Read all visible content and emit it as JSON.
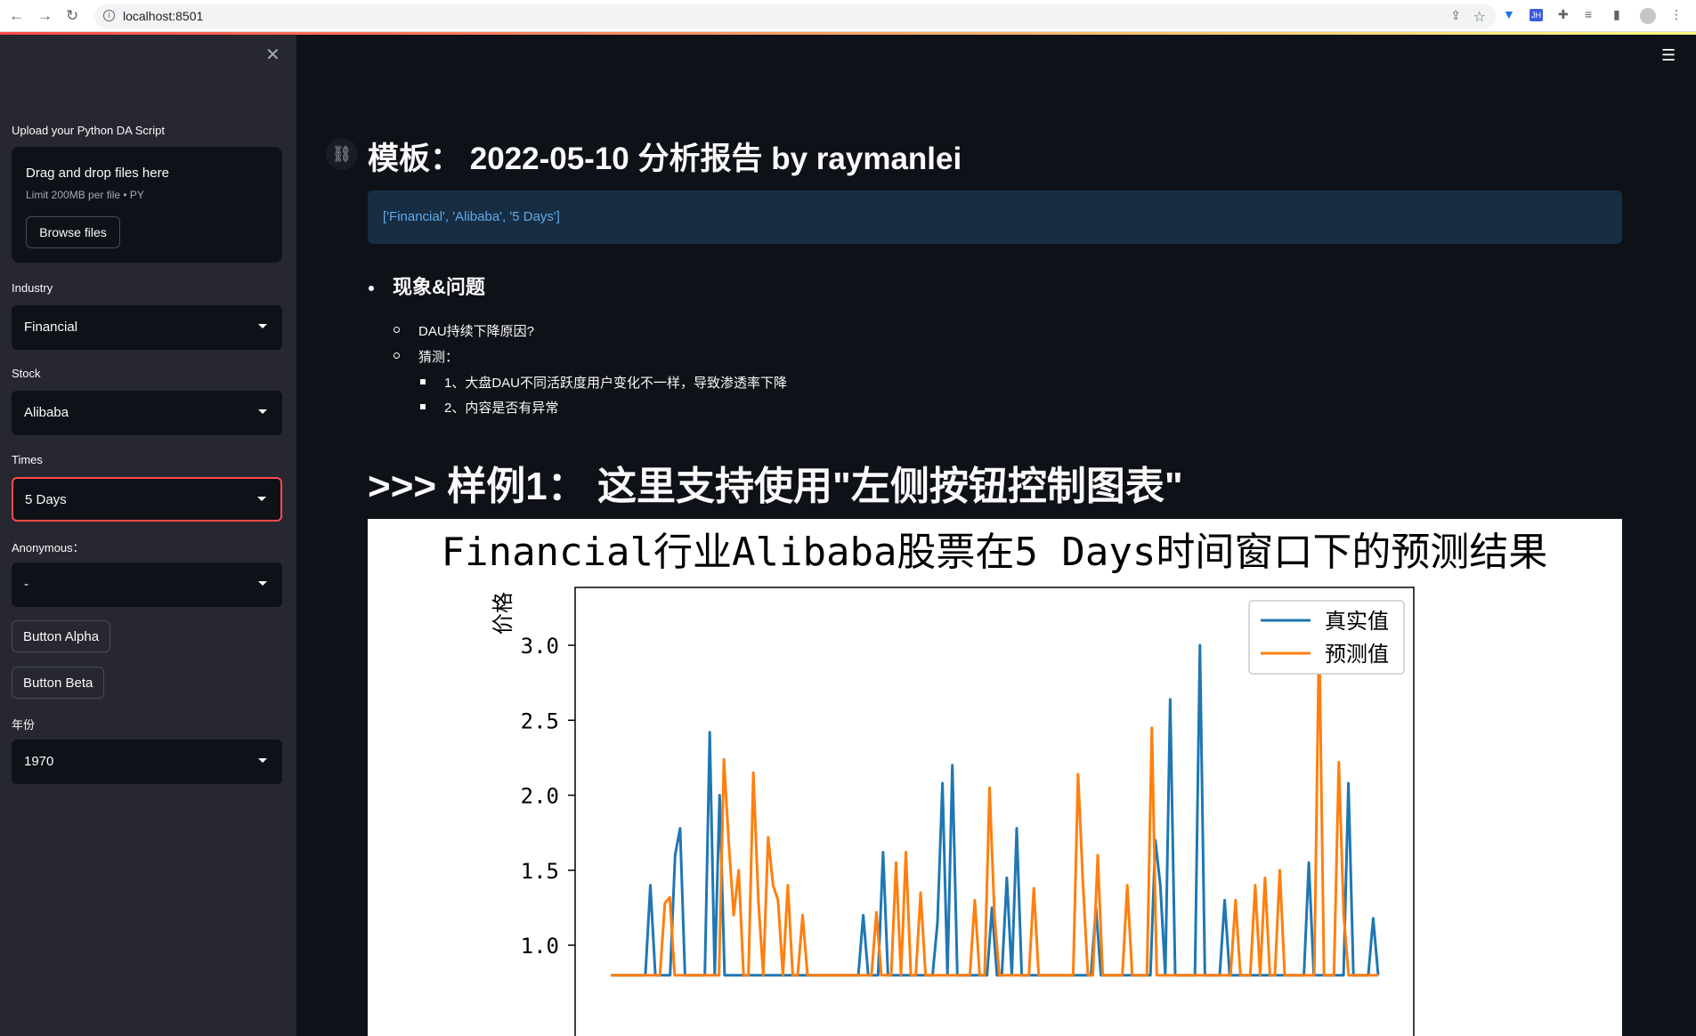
{
  "browser": {
    "url": "localhost:8501"
  },
  "sidebar": {
    "uploader": {
      "label": "Upload your Python DA Script",
      "drag_text": "Drag and drop files here",
      "limit_text": "Limit 200MB per file • PY",
      "browse_label": "Browse files"
    },
    "industry": {
      "label": "Industry",
      "value": "Financial"
    },
    "stock": {
      "label": "Stock",
      "value": "Alibaba"
    },
    "times": {
      "label": "Times",
      "value": "5 Days"
    },
    "anonymous": {
      "label": "Anonymous：",
      "value": "-"
    },
    "button_alpha": "Button Alpha",
    "button_beta": "Button Beta",
    "year": {
      "label": "年份",
      "value": "1970"
    }
  },
  "main": {
    "title": "模板： 2022-05-10 分析报告 by raymanlei",
    "info": "['Financial', 'Alibaba', '5 Days']",
    "section": "现象&问题",
    "items": [
      "DAU持续下降原因?",
      "猜测："
    ],
    "subitems": [
      "1、大盘DAU不同活跃度用户变化不一样，导致渗透率下降",
      "2、内容是否有异常"
    ],
    "sample_heading": ">>> 样例1： 这里支持使用\"左侧按钮控制图表\""
  },
  "chart_data": {
    "type": "line",
    "title": "Financial行业Alibaba股票在5 Days时间窗口下的预测结果",
    "ylabel": "价格",
    "ylim": [
      0.95,
      3.4
    ],
    "yticks": [
      "3.0",
      "2.5",
      "2.0",
      "1.5",
      "1.0"
    ],
    "legend": "top-right",
    "series": [
      {
        "name": "真实值",
        "color": "#1f77b4",
        "values": [
          0.8,
          0.8,
          0.8,
          0.8,
          0.8,
          0.8,
          0.8,
          0.8,
          1.4,
          0.8,
          0.8,
          0.8,
          0.8,
          1.6,
          1.78,
          0.8,
          0.8,
          0.8,
          0.8,
          0.8,
          2.42,
          0.8,
          2.0,
          0.8,
          0.8,
          0.8,
          0.8,
          0.8,
          0.8,
          0.8,
          0.8,
          0.8,
          0.8,
          0.8,
          0.8,
          0.8,
          0.8,
          0.8,
          0.8,
          0.8,
          0.8,
          0.8,
          0.8,
          0.8,
          0.8,
          0.8,
          0.8,
          0.8,
          0.8,
          0.8,
          0.8,
          1.2,
          0.8,
          0.8,
          0.8,
          1.62,
          0.8,
          0.8,
          0.8,
          0.8,
          0.8,
          0.8,
          0.8,
          0.8,
          0.8,
          0.8,
          1.15,
          2.08,
          0.8,
          2.2,
          0.8,
          0.8,
          0.8,
          0.8,
          0.8,
          0.8,
          0.8,
          1.25,
          0.8,
          0.8,
          1.45,
          0.8,
          1.78,
          0.8,
          0.8,
          0.8,
          0.8,
          0.8,
          0.8,
          0.8,
          0.8,
          0.8,
          0.8,
          0.8,
          0.8,
          0.8,
          0.8,
          0.8,
          1.25,
          0.8,
          0.8,
          0.8,
          0.8,
          0.8,
          0.8,
          0.8,
          0.8,
          0.8,
          0.8,
          0.8,
          1.7,
          1.4,
          0.8,
          2.64,
          0.8,
          0.8,
          0.8,
          0.8,
          0.8,
          3.0,
          0.8,
          0.8,
          0.8,
          0.8,
          1.3,
          0.8,
          0.8,
          0.8,
          0.8,
          0.8,
          0.8,
          0.8,
          0.8,
          0.8,
          0.8,
          0.8,
          0.8,
          0.8,
          0.8,
          0.8,
          0.8,
          1.55,
          0.8,
          0.8,
          0.8,
          0.8,
          0.8,
          0.8,
          0.8,
          2.08,
          0.8,
          0.8,
          0.8,
          0.8,
          1.18,
          0.8
        ]
      },
      {
        "name": "预测值",
        "color": "#ff7f0e",
        "values": [
          0.8,
          0.8,
          0.8,
          0.8,
          0.8,
          0.8,
          0.8,
          0.8,
          0.8,
          0.8,
          0.8,
          1.28,
          1.32,
          0.8,
          0.8,
          0.8,
          0.8,
          0.8,
          0.8,
          0.8,
          0.8,
          0.8,
          0.8,
          2.24,
          1.68,
          1.2,
          1.5,
          0.8,
          0.8,
          2.15,
          1.3,
          0.8,
          1.72,
          1.4,
          1.3,
          0.8,
          1.4,
          0.8,
          0.8,
          1.2,
          0.8,
          0.8,
          0.8,
          0.8,
          0.8,
          0.8,
          0.8,
          0.8,
          0.8,
          0.8,
          0.8,
          0.8,
          0.8,
          0.8,
          1.22,
          0.8,
          0.8,
          0.8,
          1.55,
          0.8,
          1.62,
          0.8,
          0.8,
          1.35,
          0.8,
          0.8,
          0.8,
          0.8,
          0.8,
          0.8,
          0.8,
          0.8,
          0.8,
          0.8,
          1.3,
          0.8,
          0.8,
          2.05,
          1.2,
          0.8,
          0.8,
          0.8,
          0.8,
          0.8,
          0.8,
          0.8,
          1.38,
          0.8,
          0.8,
          0.8,
          0.8,
          0.8,
          0.8,
          0.8,
          0.8,
          2.14,
          1.4,
          0.8,
          0.8,
          1.6,
          0.8,
          0.8,
          0.8,
          0.8,
          0.8,
          1.4,
          0.8,
          0.8,
          0.8,
          0.8,
          2.45,
          0.8,
          0.8,
          0.8,
          0.8,
          0.8,
          0.8,
          0.8,
          0.8,
          0.8,
          0.8,
          0.8,
          0.8,
          0.8,
          0.8,
          0.8,
          0.8,
          1.3,
          0.8,
          0.8,
          0.8,
          1.4,
          0.8,
          1.45,
          0.8,
          0.8,
          1.5,
          0.8,
          0.8,
          0.8,
          0.8,
          0.8,
          0.8,
          0.8,
          3.1,
          0.8,
          0.8,
          0.8,
          2.22,
          1.2,
          0.8,
          0.8,
          0.8,
          0.8,
          0.8,
          0.8,
          0.8
        ]
      }
    ]
  }
}
